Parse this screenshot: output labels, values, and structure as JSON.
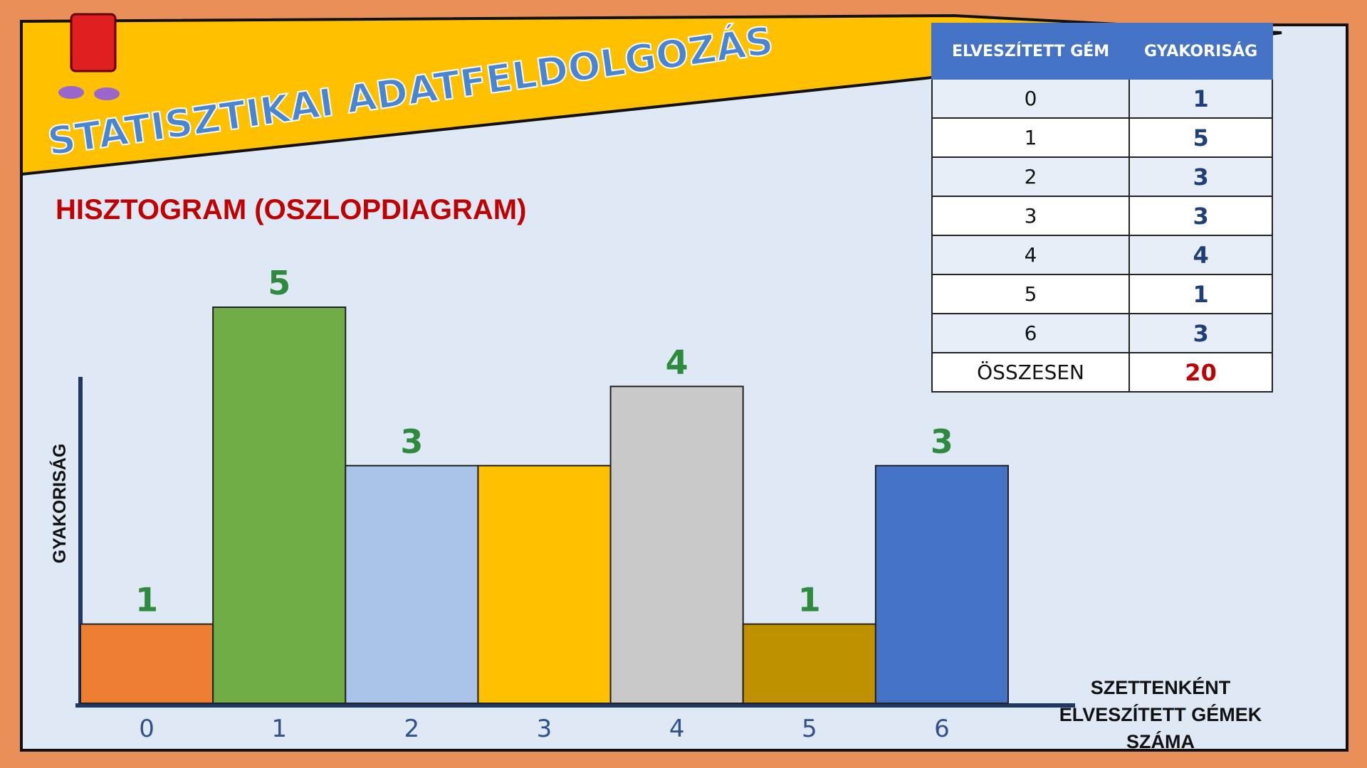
{
  "slide_title": "STATISZTIKAI ADATFELDOLGOZÁS",
  "chart_data": {
    "type": "bar",
    "title": "HISZTOGRAM (OSZLOPDIAGRAM)",
    "y_label": "GYAKORISÁG",
    "x_label": "SZETTENKÉNT ELVESZÍTETT GÉMEK SZÁMA",
    "categories": [
      "0",
      "1",
      "2",
      "3",
      "4",
      "5",
      "6"
    ],
    "values": [
      1,
      5,
      3,
      3,
      4,
      1,
      3
    ],
    "value_labels": [
      "1",
      "5",
      "3",
      null,
      "4",
      "1",
      "3"
    ],
    "colors": [
      "#ed7d31",
      "#70ad47",
      "#a9c4e8",
      "#ffc000",
      "#c9c9c9",
      "#bf9000",
      "#4472c4"
    ],
    "ylim": [
      0,
      5
    ]
  },
  "table": {
    "header": [
      "ELVESZÍTETT GÉM",
      "GYAKORISÁG"
    ],
    "rows": [
      [
        0,
        1
      ],
      [
        1,
        5
      ],
      [
        2,
        3
      ],
      [
        3,
        3
      ],
      [
        4,
        4
      ],
      [
        5,
        1
      ],
      [
        6,
        3
      ]
    ],
    "total": {
      "label": "ÖSSZESEN",
      "value": 20
    }
  }
}
